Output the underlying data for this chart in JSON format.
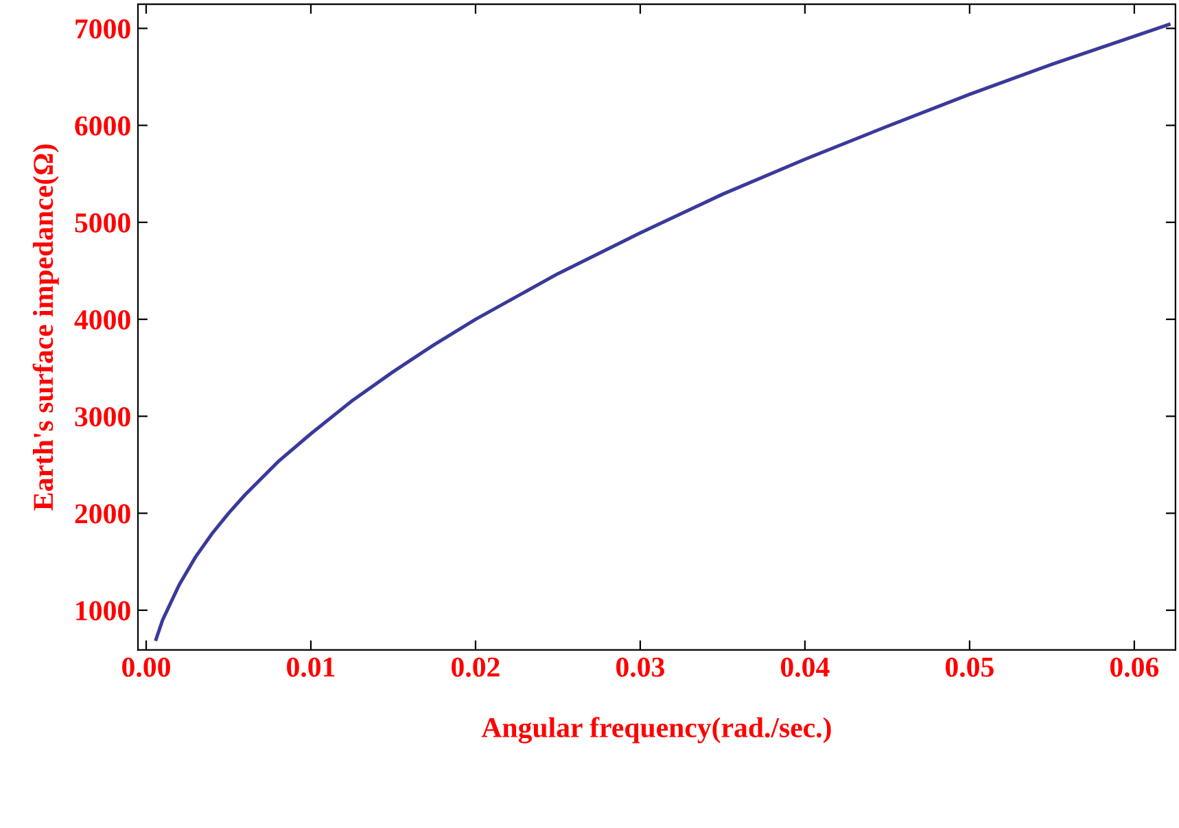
{
  "chart_data": {
    "type": "line",
    "xlabel": "Angular frequency(rad./sec.)",
    "ylabel": "Earth's surface impedance(Ω)",
    "xlim": [
      -0.0005,
      0.0625
    ],
    "ylim": [
      590,
      7250
    ],
    "xticks": [
      {
        "value": 0,
        "label": "0.00"
      },
      0.01,
      0.02,
      0.03,
      0.04,
      0.05,
      0.06
    ],
    "yticks": [
      1000,
      2000,
      3000,
      4000,
      5000,
      6000,
      7000
    ],
    "grid": false,
    "legend": false,
    "marker": "none",
    "line_style": "solid",
    "series": [
      {
        "color": "#3a3a9a",
        "x": [
          0.0006,
          0.001,
          0.002,
          0.003,
          0.004,
          0.005,
          0.006,
          0.008,
          0.01,
          0.0125,
          0.015,
          0.0175,
          0.02,
          0.025,
          0.03,
          0.035,
          0.04,
          0.045,
          0.05,
          0.055,
          0.0621
        ],
        "values": [
          700,
          900,
          1260,
          1550,
          1790,
          2000,
          2190,
          2530,
          2820,
          3160,
          3460,
          3740,
          4000,
          4470,
          4890,
          5290,
          5650,
          5990,
          6320,
          6630,
          7040
        ]
      }
    ]
  }
}
